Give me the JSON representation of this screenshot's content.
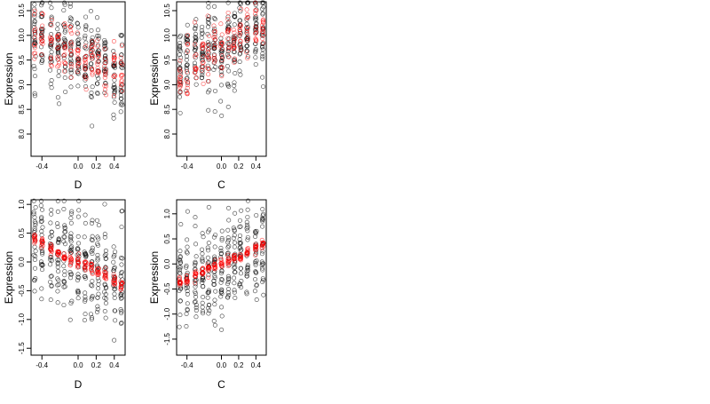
{
  "chart_data": [
    {
      "type": "scatter",
      "xlabel": "D",
      "ylabel": "Expression",
      "xlim": [
        -0.52,
        0.52
      ],
      "ylim": [
        7.55,
        10.68
      ],
      "xticks": [
        -0.4,
        0.0,
        0.2,
        0.4
      ],
      "xtick_labels": [
        "-0.4",
        "0.0",
        "0.2",
        "0.4"
      ],
      "yticks": [
        8.0,
        8.5,
        9.0,
        9.5,
        10.0,
        10.5
      ],
      "ytick_labels": [
        "8.0",
        "8.5",
        "9.0",
        "9.5",
        "10.0",
        "10.5"
      ],
      "x_groups": [
        -0.48,
        -0.4,
        -0.3,
        -0.22,
        -0.15,
        -0.08,
        0.0,
        0.08,
        0.15,
        0.22,
        0.3,
        0.4,
        0.48
      ],
      "observed": {
        "color": "#000000",
        "center": [
          10.0,
          9.9,
          9.8,
          9.85,
          9.8,
          9.75,
          9.6,
          9.55,
          9.4,
          9.4,
          9.3,
          9.2,
          9.1
        ],
        "spread": 0.45,
        "points_per_group": 24
      },
      "fitted": {
        "color": "#ff0000",
        "center": [
          9.95,
          9.9,
          9.85,
          9.75,
          9.75,
          9.7,
          9.6,
          9.55,
          9.5,
          9.45,
          9.35,
          9.3,
          9.2
        ],
        "spread": 0.28,
        "points_per_group": 12
      },
      "grid": false
    },
    {
      "type": "scatter",
      "xlabel": "C",
      "ylabel": "Expression",
      "xlim": [
        -0.52,
        0.52
      ],
      "ylim": [
        7.55,
        10.68
      ],
      "xticks": [
        -0.4,
        0.0,
        0.2,
        0.4
      ],
      "xtick_labels": [
        "-0.4",
        "0.0",
        "0.2",
        "0.4"
      ],
      "yticks": [
        8.0,
        8.5,
        9.0,
        9.5,
        10.0,
        10.5
      ],
      "ytick_labels": [
        "8.0",
        "8.5",
        "9.0",
        "9.5",
        "10.0",
        "10.5"
      ],
      "x_groups": [
        -0.48,
        -0.4,
        -0.3,
        -0.22,
        -0.15,
        -0.08,
        0.0,
        0.08,
        0.15,
        0.22,
        0.3,
        0.4,
        0.48
      ],
      "observed": {
        "color": "#000000",
        "center": [
          9.3,
          9.45,
          9.6,
          9.7,
          9.75,
          9.8,
          9.6,
          9.75,
          9.85,
          9.95,
          10.0,
          10.05,
          10.0
        ],
        "spread": 0.45,
        "points_per_group": 24
      },
      "fitted": {
        "color": "#ff0000",
        "center": [
          9.2,
          9.4,
          9.55,
          9.65,
          9.7,
          9.75,
          9.7,
          9.8,
          9.9,
          9.95,
          10.0,
          10.1,
          10.15
        ],
        "spread": 0.3,
        "points_per_group": 12
      },
      "grid": false
    },
    {
      "type": "scatter",
      "xlabel": "D",
      "ylabel": "Expression",
      "xlim": [
        -0.52,
        0.52
      ],
      "ylim": [
        -1.62,
        1.08
      ],
      "xticks": [
        -0.4,
        0.0,
        0.2,
        0.4
      ],
      "xtick_labels": [
        "-0.4",
        "0.0",
        "0.2",
        "0.4"
      ],
      "yticks": [
        -1.5,
        -1.0,
        -0.5,
        0.0,
        0.5,
        1.0
      ],
      "ytick_labels": [
        "-1.5",
        "-1.0",
        "-0.5",
        "0.0",
        "0.5",
        "1.0"
      ],
      "x_groups": [
        -0.48,
        -0.4,
        -0.3,
        -0.22,
        -0.15,
        -0.08,
        0.0,
        0.08,
        0.15,
        0.22,
        0.3,
        0.4,
        0.48
      ],
      "observed": {
        "color": "#000000",
        "center": [
          0.3,
          0.3,
          0.2,
          0.15,
          0.1,
          0.05,
          0.0,
          -0.05,
          -0.1,
          -0.15,
          -0.2,
          -0.3,
          -0.35
        ],
        "spread": 0.45,
        "points_per_group": 24
      },
      "fitted": {
        "color": "#ff0000",
        "center": [
          0.4,
          0.32,
          0.22,
          0.16,
          0.1,
          0.05,
          0.0,
          -0.05,
          -0.1,
          -0.16,
          -0.22,
          -0.32,
          -0.4
        ],
        "spread": 0.05,
        "points_per_group": 12
      },
      "grid": false
    },
    {
      "type": "scatter",
      "xlabel": "C",
      "ylabel": "Expression",
      "xlim": [
        -0.52,
        0.52
      ],
      "ylim": [
        -1.82,
        1.28
      ],
      "xticks": [
        -0.4,
        0.0,
        0.2,
        0.4
      ],
      "xtick_labels": [
        "-0.4",
        "0.0",
        "0.2",
        "0.4"
      ],
      "yticks": [
        -1.5,
        -1.0,
        -0.5,
        0.0,
        0.5,
        1.0
      ],
      "ytick_labels": [
        "-1.5",
        "-1.0",
        "-0.5",
        "0.0",
        "0.5",
        "1.0"
      ],
      "x_groups": [
        -0.48,
        -0.4,
        -0.3,
        -0.22,
        -0.15,
        -0.08,
        0.0,
        0.08,
        0.15,
        0.22,
        0.3,
        0.4,
        0.48
      ],
      "observed": {
        "color": "#000000",
        "center": [
          -0.35,
          -0.3,
          -0.2,
          -0.15,
          -0.1,
          -0.05,
          0.0,
          0.05,
          0.1,
          0.15,
          0.2,
          0.3,
          0.35
        ],
        "spread": 0.5,
        "points_per_group": 24
      },
      "fitted": {
        "color": "#ff0000",
        "center": [
          -0.38,
          -0.32,
          -0.22,
          -0.16,
          -0.1,
          -0.05,
          0.0,
          0.05,
          0.1,
          0.16,
          0.22,
          0.32,
          0.38
        ],
        "spread": 0.05,
        "points_per_group": 12
      },
      "grid": false
    }
  ]
}
